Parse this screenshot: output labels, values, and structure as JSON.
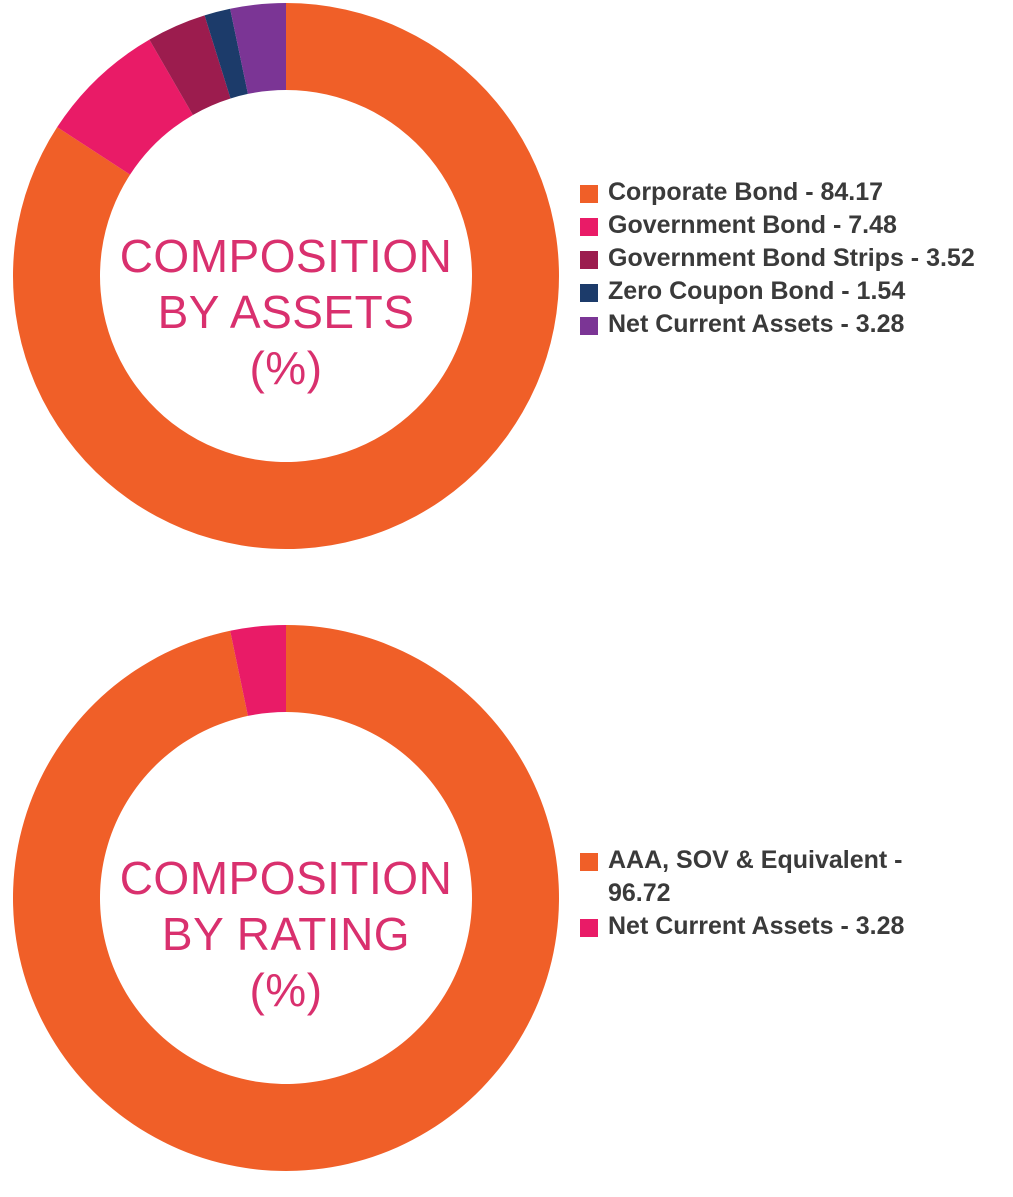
{
  "chart_data": [
    {
      "type": "pie",
      "variant": "donut",
      "title": [
        "COMPOSITION",
        "BY ASSETS",
        "(%)"
      ],
      "legend_position": "right",
      "slices": [
        {
          "label": "Corporate Bond - 84.17",
          "name": "Corporate Bond",
          "value": 84.17,
          "color": "#f05f28"
        },
        {
          "label": "Government Bond - 7.48",
          "name": "Government Bond",
          "value": 7.48,
          "color": "#e91b67"
        },
        {
          "label": "Government Bond Strips - 3.52",
          "name": "Government Bond Strips",
          "value": 3.52,
          "color": "#9c1c4e"
        },
        {
          "label": "Zero Coupon Bond - 1.54",
          "name": "Zero Coupon Bond",
          "value": 1.54,
          "color": "#1c3b6a"
        },
        {
          "label": "Net Current Assets - 3.28",
          "name": "Net Current Assets",
          "value": 3.28,
          "color": "#7b3595"
        }
      ]
    },
    {
      "type": "pie",
      "variant": "donut",
      "title": [
        "COMPOSITION",
        "BY RATING",
        "(%)"
      ],
      "legend_position": "right",
      "slices": [
        {
          "label": "AAA, SOV & Equivalent - 96.72",
          "name": "AAA, SOV & Equivalent",
          "value": 96.72,
          "color": "#f05f28"
        },
        {
          "label": "Net Current Assets - 3.28",
          "name": "Net Current Assets",
          "value": 3.28,
          "color": "#e91b67"
        }
      ]
    }
  ]
}
